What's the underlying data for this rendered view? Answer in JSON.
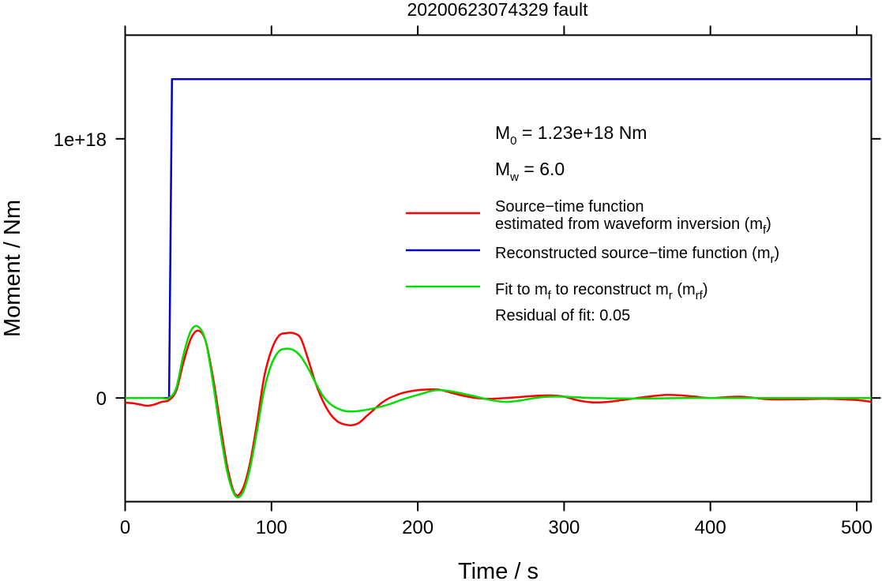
{
  "chart_data": {
    "type": "line",
    "title": "20200623074329 fault",
    "xlabel": "Time / s",
    "ylabel": "Moment / Nm",
    "xlim": [
      0,
      510
    ],
    "ylim": [
      -4e+17,
      1.4e+18
    ],
    "x_ticks": [
      0,
      100,
      200,
      300,
      400,
      500
    ],
    "x_tick_labels": [
      "0",
      "100",
      "200",
      "300",
      "400",
      "500"
    ],
    "y_ticks": [
      0,
      1e+18
    ],
    "y_tick_labels": [
      "0",
      "1e+18"
    ],
    "grid": false,
    "legend_position": "right",
    "annotations": {
      "m0": {
        "base": "M",
        "sub": "0",
        "text": " = 1.23e+18 Nm"
      },
      "mw": {
        "base": "M",
        "sub": "w",
        "text": " = 6.0"
      },
      "residual": "Residual of fit: 0.05"
    },
    "series": [
      {
        "key": "mf",
        "color": "#ff0000",
        "legend_lines": [
          [
            {
              "t": "Source−time function"
            }
          ],
          [
            {
              "t": "estimated from waveform inversion (m"
            },
            {
              "t": "f",
              "sub": true
            },
            {
              "t": ")"
            }
          ]
        ],
        "x": [
          0,
          5,
          10,
          15,
          20,
          25,
          30,
          35,
          40,
          45,
          50,
          55,
          60,
          65,
          70,
          75,
          80,
          85,
          90,
          95,
          100,
          105,
          110,
          115,
          120,
          125,
          130,
          135,
          140,
          145,
          150,
          155,
          160,
          165,
          170,
          175,
          180,
          185,
          190,
          200,
          210,
          215,
          220,
          230,
          240,
          250,
          260,
          270,
          280,
          290,
          300,
          310,
          320,
          330,
          340,
          350,
          360,
          370,
          380,
          390,
          400,
          420,
          440,
          460,
          480,
          500,
          510
        ],
        "values": [
          -1.8e+16,
          -2e+16,
          -2.5e+16,
          -3e+16,
          -2.5e+16,
          -1.5e+16,
          -8000000000000000.0,
          3e+16,
          1.4e+17,
          2.3e+17,
          2.6e+17,
          2.2e+17,
          8e+16,
          -1e+17,
          -2.7e+17,
          -3.7e+17,
          -3.55e+17,
          -2.6e+17,
          -1e+17,
          8e+16,
          1.85e+17,
          2.4e+17,
          2.5e+17,
          2.5e+17,
          2.3e+17,
          1.5e+17,
          6e+16,
          -1e+16,
          -6e+16,
          -9e+16,
          -1.02e+17,
          -1.05e+17,
          -9.5e+16,
          -7e+16,
          -4.5e+16,
          -2e+16,
          -2000000000000000.0,
          1e+16,
          2e+16,
          3e+16,
          3.3e+16,
          3.2e+16,
          2.5e+16,
          1e+16,
          0,
          -3000000000000000.0,
          0,
          4000000000000000.0,
          8000000000000000.0,
          1e+16,
          5000000000000000.0,
          -1e+16,
          -1.7e+16,
          -1.5e+16,
          -8000000000000000.0,
          0,
          7000000000000000.0,
          1.2e+16,
          1e+16,
          5000000000000000.0,
          0,
          5000000000000000.0,
          -5000000000000000.0,
          -5000000000000000.0,
          -3000000000000000.0,
          -8000000000000000.0,
          -1.5e+16
        ]
      },
      {
        "key": "mr",
        "color": "#0000cc",
        "legend_lines": [
          [
            {
              "t": "Reconstructed source−time function (m"
            },
            {
              "t": "r",
              "sub": true
            },
            {
              "t": ")"
            }
          ]
        ],
        "x": [
          0,
          30,
          32,
          510
        ],
        "values": [
          0,
          0,
          1.23e+18,
          1.23e+18
        ]
      },
      {
        "key": "mrf",
        "color": "#00dd00",
        "legend_lines": [
          [
            {
              "t": "Fit to m"
            },
            {
              "t": "f",
              "sub": true
            },
            {
              "t": " to reconstruct m"
            },
            {
              "t": "r",
              "sub": true
            },
            {
              "t": " (m"
            },
            {
              "t": "rf",
              "sub": true
            },
            {
              "t": ")"
            }
          ]
        ],
        "x": [
          0,
          10,
          20,
          25,
          30,
          35,
          40,
          45,
          50,
          55,
          60,
          65,
          70,
          75,
          80,
          85,
          90,
          95,
          100,
          105,
          110,
          115,
          120,
          125,
          130,
          135,
          140,
          145,
          150,
          155,
          160,
          170,
          180,
          190,
          200,
          210,
          215,
          220,
          230,
          240,
          250,
          260,
          270,
          280,
          290,
          300,
          320,
          340,
          360,
          380,
          400,
          450,
          510
        ],
        "values": [
          0,
          0,
          0,
          0,
          0,
          4e+16,
          1.7e+17,
          2.6e+17,
          2.75e+17,
          2.2e+17,
          6e+16,
          -1.3e+17,
          -2.9e+17,
          -3.75e+17,
          -3.7e+17,
          -2.8e+17,
          -1.3e+17,
          3e+16,
          1.3e+17,
          1.8e+17,
          1.9e+17,
          1.85e+17,
          1.6e+17,
          1.15e+17,
          6e+16,
          1e+16,
          -2.2e+16,
          -4e+16,
          -5e+16,
          -5.2e+16,
          -5e+16,
          -4e+16,
          -2.5e+16,
          -5000000000000000.0,
          1.2e+16,
          2.8e+16,
          3e+16,
          2.8e+16,
          1.8e+16,
          5000000000000000.0,
          -8000000000000000.0,
          -1.5e+16,
          -1e+16,
          0,
          5000000000000000.0,
          5000000000000000.0,
          0,
          -2000000000000000.0,
          -2000000000000000.0,
          0,
          0,
          0,
          0
        ]
      }
    ]
  }
}
